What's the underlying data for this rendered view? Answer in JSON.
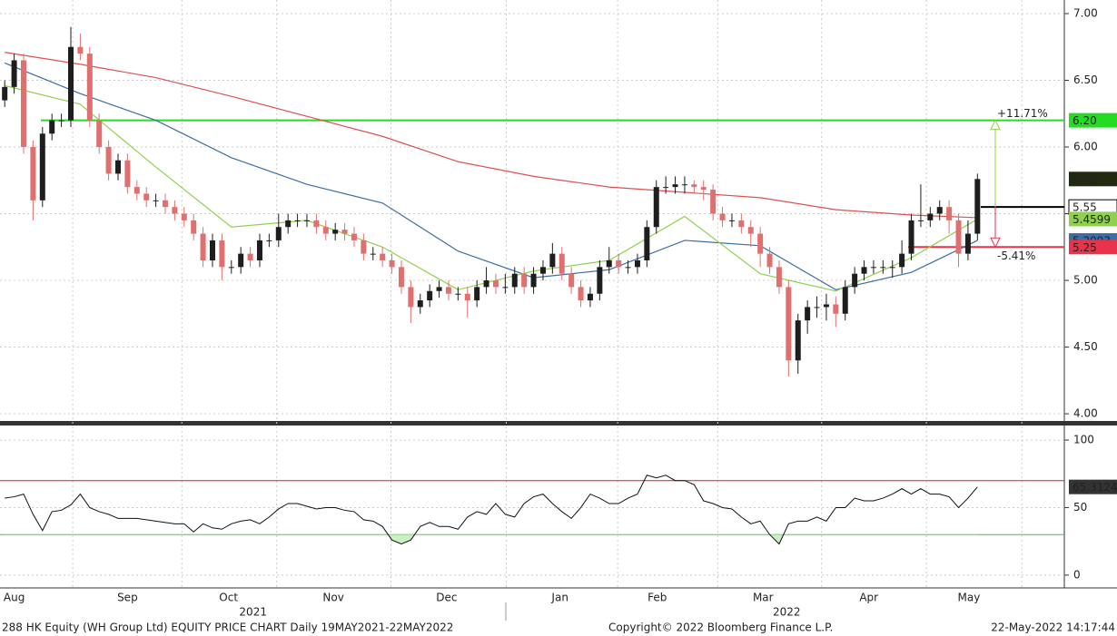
{
  "chart_data": [
    {
      "type": "candlestick",
      "xlim": [
        -0.5,
        112.2
      ],
      "ylim": [
        3.946,
        7.102
      ],
      "yticks": [
        {
          "value": 4,
          "label": "4.00"
        },
        {
          "value": 4.5,
          "label": "4.50"
        },
        {
          "value": 5,
          "label": "5.00"
        },
        {
          "value": 5.5,
          "label": "5.50"
        },
        {
          "value": 6,
          "label": "6.00"
        },
        {
          "value": 6.5,
          "label": "6.50"
        },
        {
          "value": 7,
          "label": "7.00"
        }
      ],
      "xticks": [
        {
          "value": 1,
          "label": "Aug"
        },
        {
          "value": 13,
          "label": "Sep"
        },
        {
          "value": 23.7,
          "label": "Oct"
        },
        {
          "value": 34.8,
          "label": "Nov"
        },
        {
          "value": 46.8,
          "label": "Dec"
        },
        {
          "value": 58.8,
          "label": "Jan"
        },
        {
          "value": 69.1,
          "label": "Feb"
        },
        {
          "value": 80.3,
          "label": "Mar"
        },
        {
          "value": 91.5,
          "label": "Apr"
        },
        {
          "value": 102.1,
          "label": "May"
        }
      ],
      "year_ticks": [
        {
          "value": 26.3,
          "label": "2021"
        },
        {
          "value": 82.8,
          "label": "2022"
        }
      ],
      "xgrid": [
        7.2,
        18.75,
        28.8,
        40.9,
        53.1,
        64.9,
        75.5,
        86.5,
        97.6,
        107.7
      ],
      "grid": true,
      "up_color": "#1e1e1e",
      "down_color": "#e07070",
      "open": [
        6.35,
        6.45,
        6.65,
        6.0,
        5.6,
        6.1,
        6.2,
        6.2,
        6.75,
        6.7,
        6.2,
        6.0,
        5.8,
        5.9,
        5.7,
        5.65,
        5.6,
        5.6,
        5.55,
        5.5,
        5.45,
        5.35,
        5.15,
        5.3,
        5.1,
        5.1,
        5.2,
        5.15,
        5.3,
        5.3,
        5.4,
        5.45,
        5.45,
        5.45,
        5.4,
        5.35,
        5.38,
        5.35,
        5.3,
        5.2,
        5.2,
        5.15,
        5.1,
        4.95,
        4.8,
        4.85,
        4.92,
        4.95,
        4.9,
        4.9,
        4.85,
        4.95,
        5.0,
        4.95,
        4.95,
        5.05,
        4.95,
        5.05,
        5.1,
        5.2,
        5.05,
        4.95,
        4.85,
        4.9,
        5.1,
        5.15,
        5.1,
        5.1,
        5.15,
        5.4,
        5.7,
        5.7,
        5.72,
        5.72,
        5.7,
        5.68,
        5.5,
        5.45,
        5.45,
        5.4,
        5.35,
        5.2,
        5.1,
        4.95,
        4.4,
        4.7,
        4.8,
        4.8,
        4.82,
        4.75,
        4.95,
        5.05,
        5.1,
        5.1,
        5.1,
        5.1,
        5.2,
        5.45,
        5.45,
        5.5,
        5.55,
        5.45,
        5.2,
        5.35
      ],
      "high": [
        6.5,
        6.7,
        6.7,
        6.05,
        6.15,
        6.25,
        6.25,
        6.9,
        6.85,
        6.75,
        6.25,
        6.05,
        5.95,
        5.95,
        5.75,
        5.7,
        5.65,
        5.65,
        5.6,
        5.55,
        5.5,
        5.4,
        5.35,
        5.35,
        5.15,
        5.25,
        5.25,
        5.35,
        5.35,
        5.5,
        5.5,
        5.5,
        5.5,
        5.5,
        5.45,
        5.43,
        5.43,
        5.4,
        5.35,
        5.25,
        5.25,
        5.2,
        5.15,
        5.0,
        4.9,
        4.97,
        5.0,
        5.0,
        4.95,
        4.95,
        5.0,
        5.1,
        5.05,
        5.05,
        5.1,
        5.1,
        5.1,
        5.15,
        5.28,
        5.25,
        5.1,
        5.0,
        4.95,
        5.15,
        5.25,
        5.2,
        5.15,
        5.2,
        5.45,
        5.75,
        5.78,
        5.78,
        5.78,
        5.75,
        5.75,
        5.72,
        5.55,
        5.5,
        5.5,
        5.45,
        5.4,
        5.25,
        5.15,
        5.0,
        4.75,
        4.85,
        4.88,
        4.9,
        4.88,
        5.0,
        5.1,
        5.15,
        5.15,
        5.15,
        5.15,
        5.3,
        5.5,
        5.72,
        5.55,
        5.6,
        5.6,
        5.5,
        5.45,
        5.8
      ],
      "low": [
        6.3,
        6.4,
        5.95,
        5.45,
        5.55,
        6.05,
        6.15,
        6.15,
        6.65,
        6.15,
        5.95,
        5.75,
        5.75,
        5.65,
        5.6,
        5.55,
        5.55,
        5.5,
        5.45,
        5.4,
        5.3,
        5.1,
        5.1,
        5.0,
        5.05,
        5.05,
        5.1,
        5.1,
        5.25,
        5.25,
        5.35,
        5.4,
        5.4,
        5.35,
        5.3,
        5.3,
        5.3,
        5.25,
        5.15,
        5.15,
        5.1,
        5.05,
        4.9,
        4.68,
        4.75,
        4.8,
        4.87,
        4.85,
        4.85,
        4.72,
        4.8,
        4.9,
        4.9,
        4.9,
        4.9,
        4.9,
        4.9,
        5.0,
        5.05,
        5.0,
        4.9,
        4.8,
        4.8,
        4.85,
        5.05,
        5.05,
        5.05,
        5.05,
        5.1,
        5.35,
        5.65,
        5.65,
        5.65,
        5.65,
        5.6,
        5.45,
        5.4,
        5.4,
        5.35,
        5.25,
        5.1,
        5.05,
        4.9,
        4.28,
        4.3,
        4.6,
        4.72,
        4.7,
        4.65,
        4.7,
        4.9,
        5.0,
        5.05,
        5.05,
        5.02,
        5.05,
        5.15,
        5.4,
        5.4,
        5.45,
        5.35,
        5.1,
        5.15,
        5.3
      ],
      "close": [
        6.45,
        6.65,
        6.0,
        5.6,
        6.1,
        6.2,
        6.2,
        6.75,
        6.7,
        6.2,
        6.0,
        5.8,
        5.9,
        5.7,
        5.65,
        5.6,
        5.6,
        5.55,
        5.5,
        5.45,
        5.35,
        5.15,
        5.3,
        5.1,
        5.1,
        5.2,
        5.15,
        5.3,
        5.3,
        5.4,
        5.45,
        5.45,
        5.45,
        5.4,
        5.35,
        5.38,
        5.35,
        5.3,
        5.2,
        5.2,
        5.15,
        5.1,
        4.95,
        4.8,
        4.85,
        4.92,
        4.95,
        4.9,
        4.9,
        4.85,
        4.95,
        5.0,
        4.95,
        4.95,
        5.05,
        4.95,
        5.05,
        5.1,
        5.2,
        5.05,
        4.95,
        4.85,
        4.9,
        5.1,
        5.15,
        5.1,
        5.1,
        5.15,
        5.4,
        5.7,
        5.7,
        5.72,
        5.72,
        5.7,
        5.68,
        5.5,
        5.45,
        5.45,
        5.4,
        5.35,
        5.2,
        5.1,
        4.95,
        4.4,
        4.7,
        4.8,
        4.8,
        4.82,
        4.75,
        4.95,
        5.05,
        5.1,
        5.1,
        5.1,
        5.1,
        5.2,
        5.45,
        5.45,
        5.5,
        5.55,
        5.45,
        5.2,
        5.35,
        5.76
      ],
      "close_label_color": "#1f2a10",
      "moving_averages": [
        {
          "color": "#e05050",
          "x": [
            0,
            8,
            16,
            24,
            32,
            40,
            48,
            56,
            64,
            72,
            80,
            88,
            96,
            103
          ],
          "values": [
            6.71,
            6.62,
            6.52,
            6.38,
            6.23,
            6.08,
            5.89,
            5.78,
            5.7,
            5.66,
            5.62,
            5.53,
            5.49,
            5.47
          ]
        },
        {
          "color": "#3a6ea5",
          "x": [
            0,
            8,
            16,
            24,
            32,
            40,
            48,
            56,
            64,
            72,
            80,
            88,
            96,
            103
          ],
          "values": [
            6.63,
            6.4,
            6.2,
            5.92,
            5.72,
            5.58,
            5.22,
            5.02,
            5.08,
            5.3,
            5.26,
            4.93,
            5.06,
            5.2993
          ]
        },
        {
          "color": "#8fd14f",
          "x": [
            0,
            8,
            16,
            24,
            32,
            40,
            48,
            56,
            64,
            72,
            80,
            88,
            96,
            103
          ],
          "values": [
            6.46,
            6.32,
            5.85,
            5.4,
            5.45,
            5.25,
            4.93,
            5.07,
            5.15,
            5.48,
            5.05,
            4.92,
            5.17,
            5.4599
          ]
        }
      ],
      "levels": [
        {
          "value": 6.2,
          "label": "6.20",
          "color": "#22dd22"
        },
        {
          "value": 5.25,
          "label": "5.25",
          "color": "#e8334a"
        },
        {
          "value": 5.55,
          "label": "5.55",
          "color": "#000000"
        }
      ],
      "annotations": [
        "+11.71%",
        "-5.41%"
      ]
    },
    {
      "type": "line",
      "xlim": [
        -0.5,
        112.2
      ],
      "ylim": [
        -9.5,
        110.8
      ],
      "yticks": [
        0,
        50,
        100
      ],
      "grid": true,
      "color": "#111111",
      "values": [
        57,
        58,
        60,
        45,
        33,
        47,
        48,
        52,
        60,
        50,
        47,
        45,
        42,
        42,
        42,
        41,
        40,
        39,
        38,
        38,
        32,
        38,
        35,
        34,
        38,
        40,
        41,
        38,
        43,
        49,
        53,
        53,
        51,
        49,
        50,
        50,
        48,
        47,
        41,
        40,
        36,
        26,
        23,
        26,
        36,
        39,
        36,
        36,
        34,
        43,
        47,
        45,
        53,
        45,
        43,
        53,
        58,
        60,
        53,
        47,
        42,
        50,
        60,
        57,
        53,
        53,
        57,
        60,
        74,
        72,
        74,
        70,
        70,
        67,
        55,
        53,
        50,
        49,
        43,
        38,
        40,
        30,
        23,
        38,
        40,
        40,
        43,
        40,
        50,
        50,
        57,
        55,
        55,
        57,
        60,
        64,
        60,
        64,
        60,
        60,
        58,
        50,
        57,
        65.3124
      ],
      "reference_lines": [
        {
          "value": 70,
          "color": "#d02020"
        },
        {
          "value": 30,
          "color": "#33cc33"
        }
      ]
    }
  ],
  "footer": {
    "left": "288 HK Equity (WH Group Ltd) EQUITY PRICE CHART  Daily 19MAY2021-22MAY2022",
    "center": "Copyright© 2022 Bloomberg Finance L.P.",
    "right": "22-May-2022 14:17:44"
  }
}
